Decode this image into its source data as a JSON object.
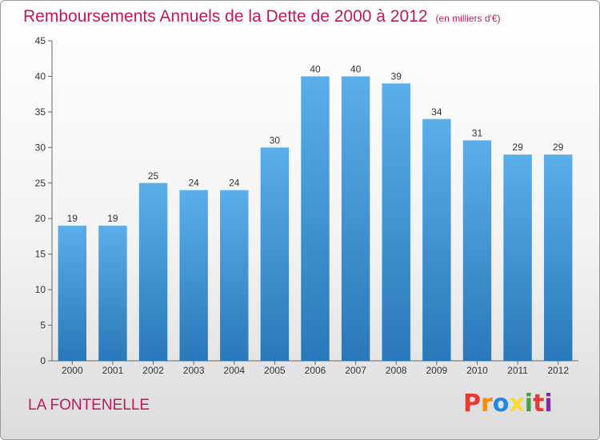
{
  "header": {
    "title": "Remboursements Annuels de la Dette de 2000 à 2012",
    "unit": "(en milliers d'€)"
  },
  "footer": {
    "commune": "LA FONTENELLE",
    "logo": {
      "letters": [
        "P",
        "r",
        "o",
        "x",
        "i",
        "t",
        "i"
      ],
      "colors": [
        "#e53935",
        "#fb8c00",
        "#1e88e5",
        "#fdd835",
        "#43a047",
        "#e53935",
        "#8e24aa"
      ]
    }
  },
  "chart_data": {
    "type": "bar",
    "categories": [
      "2000",
      "2001",
      "2002",
      "2003",
      "2004",
      "2005",
      "2006",
      "2007",
      "2008",
      "2009",
      "2010",
      "2011",
      "2012"
    ],
    "values": [
      19,
      19,
      25,
      24,
      24,
      30,
      40,
      40,
      39,
      34,
      31,
      29,
      29
    ],
    "data_labels": [
      "19",
      "19",
      "25",
      "24",
      "24",
      "30",
      "40",
      "40",
      "39",
      "34",
      "31",
      "29",
      "29"
    ],
    "yticks": [
      0,
      5,
      10,
      15,
      20,
      25,
      30,
      35,
      40,
      45
    ],
    "ylim": [
      0,
      45
    ],
    "grid": false,
    "bar_color_top": "#5aaeea",
    "bar_color_bottom": "#2a78b8"
  }
}
